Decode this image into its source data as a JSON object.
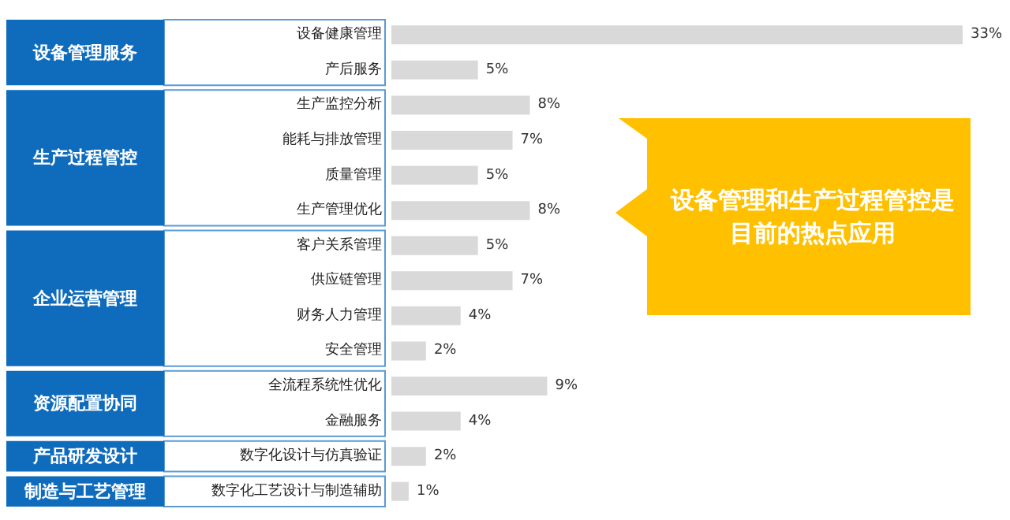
{
  "chart_data": {
    "type": "bar",
    "orientation": "horizontal",
    "categories": [
      "设备健康管理",
      "产后服务",
      "生产监控分析",
      "能耗与排放管理",
      "质量管理",
      "生产管理优化",
      "客户关系管理",
      "供应链管理",
      "财务人力管理",
      "安全管理",
      "全流程系统性优化",
      "金融服务",
      "数字化设计与仿真验证",
      "数字化工艺设计与制造辅助"
    ],
    "values": [
      33,
      5,
      8,
      7,
      5,
      8,
      5,
      7,
      4,
      2,
      9,
      4,
      2,
      1
    ],
    "value_labels": [
      "33%",
      "5%",
      "8%",
      "7%",
      "5%",
      "8%",
      "5%",
      "7%",
      "4%",
      "2%",
      "9%",
      "4%",
      "2%",
      "1%"
    ],
    "color": "#d9d9d9",
    "annotations": [
      "设备管理服务",
      "生产过程管控",
      "企业运营管理",
      "资源配置协同",
      "产品研发设计",
      "制造与工艺管理",
      "设备管理和生产过程管控是目前的热点应用"
    ]
  }
}
